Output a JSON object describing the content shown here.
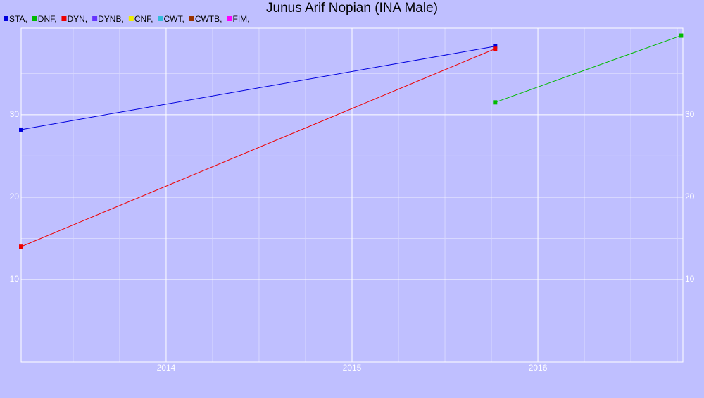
{
  "chart_data": {
    "type": "line",
    "title": "Junus Arif Nopian (INA Male)",
    "x": [
      2013.22,
      2015.77,
      2016.77
    ],
    "series": [
      {
        "name": "STA,",
        "color": "#0000dd",
        "values": [
          28.2,
          38.3,
          null
        ]
      },
      {
        "name": "DNF,",
        "color": "#00bb00",
        "values": [
          null,
          31.5,
          39.6
        ]
      },
      {
        "name": "DYN,",
        "color": "#ee0000",
        "values": [
          14.0,
          38.0,
          null
        ]
      },
      {
        "name": "DYNB,",
        "color": "#6633ff",
        "values": [
          null,
          null,
          null
        ]
      },
      {
        "name": "CNF,",
        "color": "#eeee00",
        "values": [
          null,
          null,
          null
        ]
      },
      {
        "name": "CWT,",
        "color": "#33bbdd",
        "values": [
          null,
          null,
          null
        ]
      },
      {
        "name": "CWTB,",
        "color": "#993300",
        "values": [
          null,
          null,
          null
        ]
      },
      {
        "name": "FIM,",
        "color": "#ff00ff",
        "values": [
          null,
          null,
          null
        ]
      }
    ],
    "xlim": [
      2013.22,
      2016.78
    ],
    "xticks": [
      2014,
      2015,
      2016
    ],
    "x_minor_ticks": [
      2013.5,
      2013.75,
      2014.25,
      2014.5,
      2014.75,
      2015.25,
      2015.5,
      2015.75,
      2016.25,
      2016.5,
      2016.75
    ],
    "ylim": [
      0,
      40.5
    ],
    "yticks": [
      10,
      20,
      30
    ],
    "y_minor_ticks": [
      5,
      15,
      25,
      35
    ],
    "grid": true
  }
}
